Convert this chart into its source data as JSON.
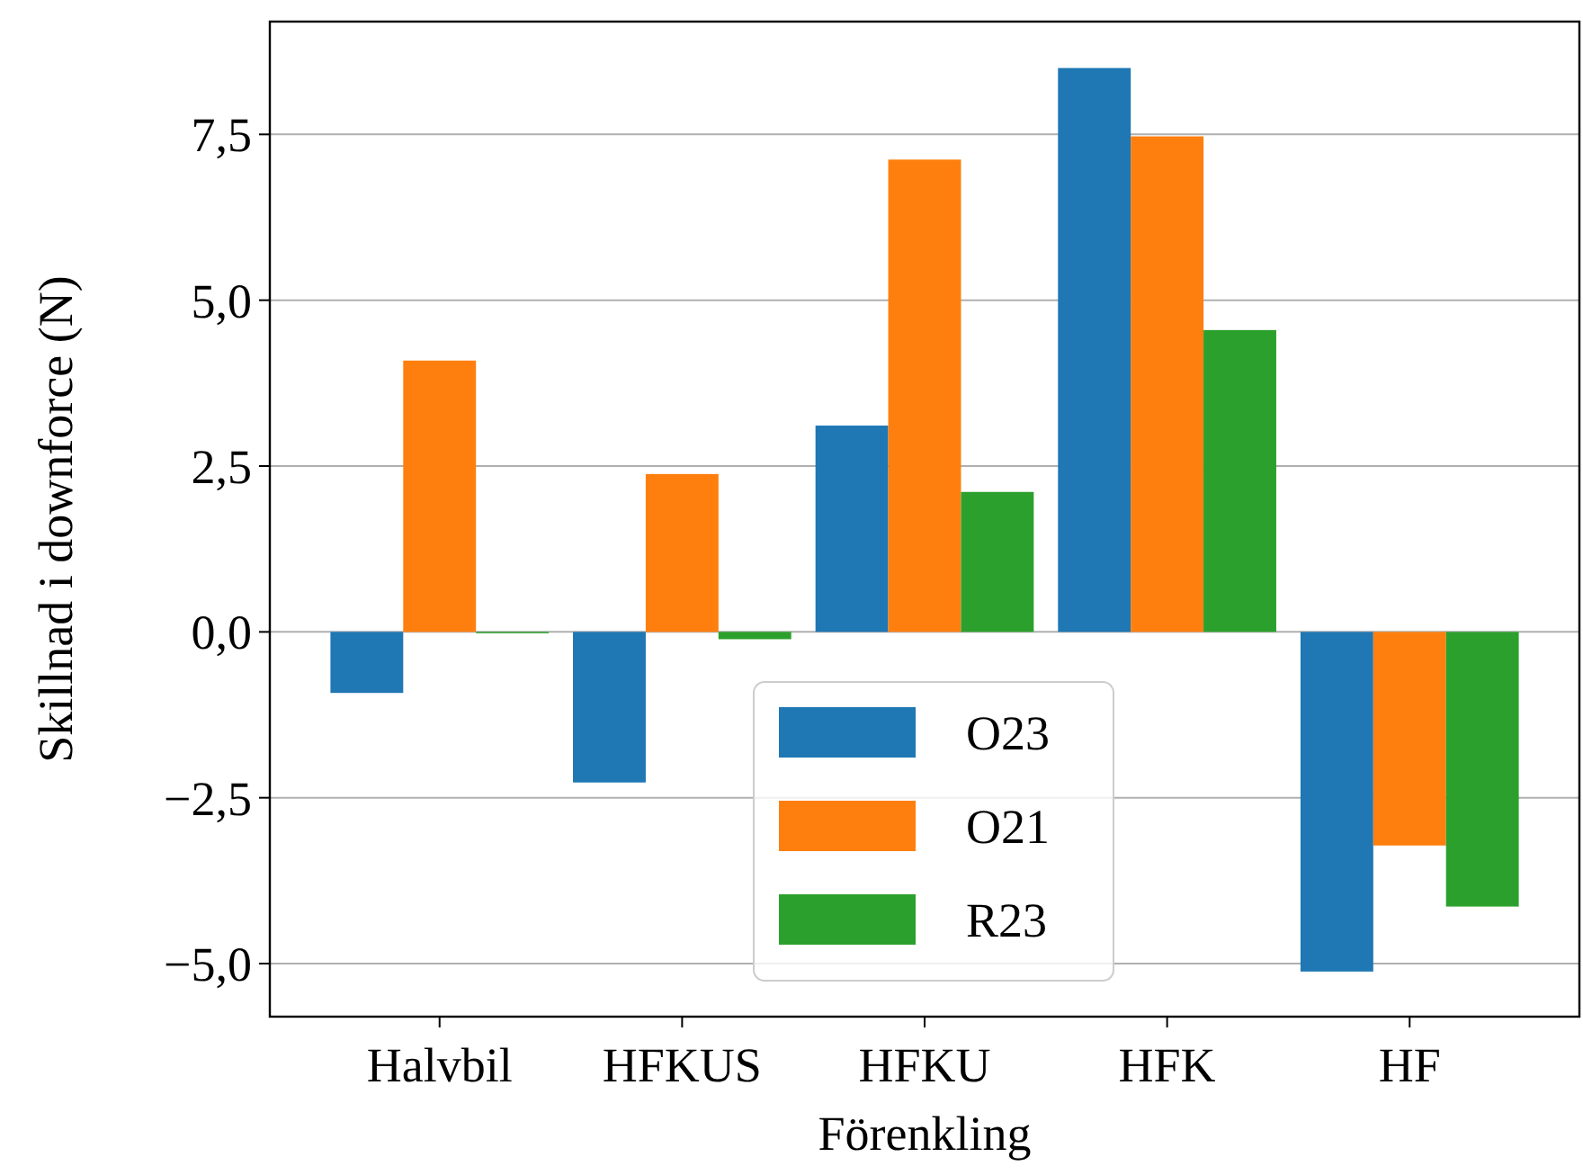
{
  "chart_data": {
    "type": "bar",
    "xlabel": "Förenkling",
    "ylabel": "Skillnad i downforce (N)",
    "categories": [
      "Halvbil",
      "HFKUS",
      "HFKU",
      "HFK",
      "HF"
    ],
    "series": [
      {
        "name": "O23",
        "color": "#1f77b4",
        "values": [
          -0.92,
          -2.27,
          3.11,
          8.5,
          -5.12
        ]
      },
      {
        "name": "O21",
        "color": "#ff7f0e",
        "values": [
          4.09,
          2.38,
          7.12,
          7.47,
          -3.22
        ]
      },
      {
        "name": "R23",
        "color": "#2ca02c",
        "values": [
          -0.02,
          -0.11,
          2.11,
          4.55,
          -4.14
        ]
      }
    ],
    "ylim": [
      -5.8,
      9.2
    ],
    "yticks": [
      {
        "value": -5,
        "label": "−5,0"
      },
      {
        "value": -2.5,
        "label": "−2,5"
      },
      {
        "value": 0,
        "label": "0,0"
      },
      {
        "value": 2.5,
        "label": "2,5"
      },
      {
        "value": 5,
        "label": "5,0"
      },
      {
        "value": 7.5,
        "label": "7,5"
      }
    ],
    "grid": "y",
    "legend": "bottom"
  }
}
